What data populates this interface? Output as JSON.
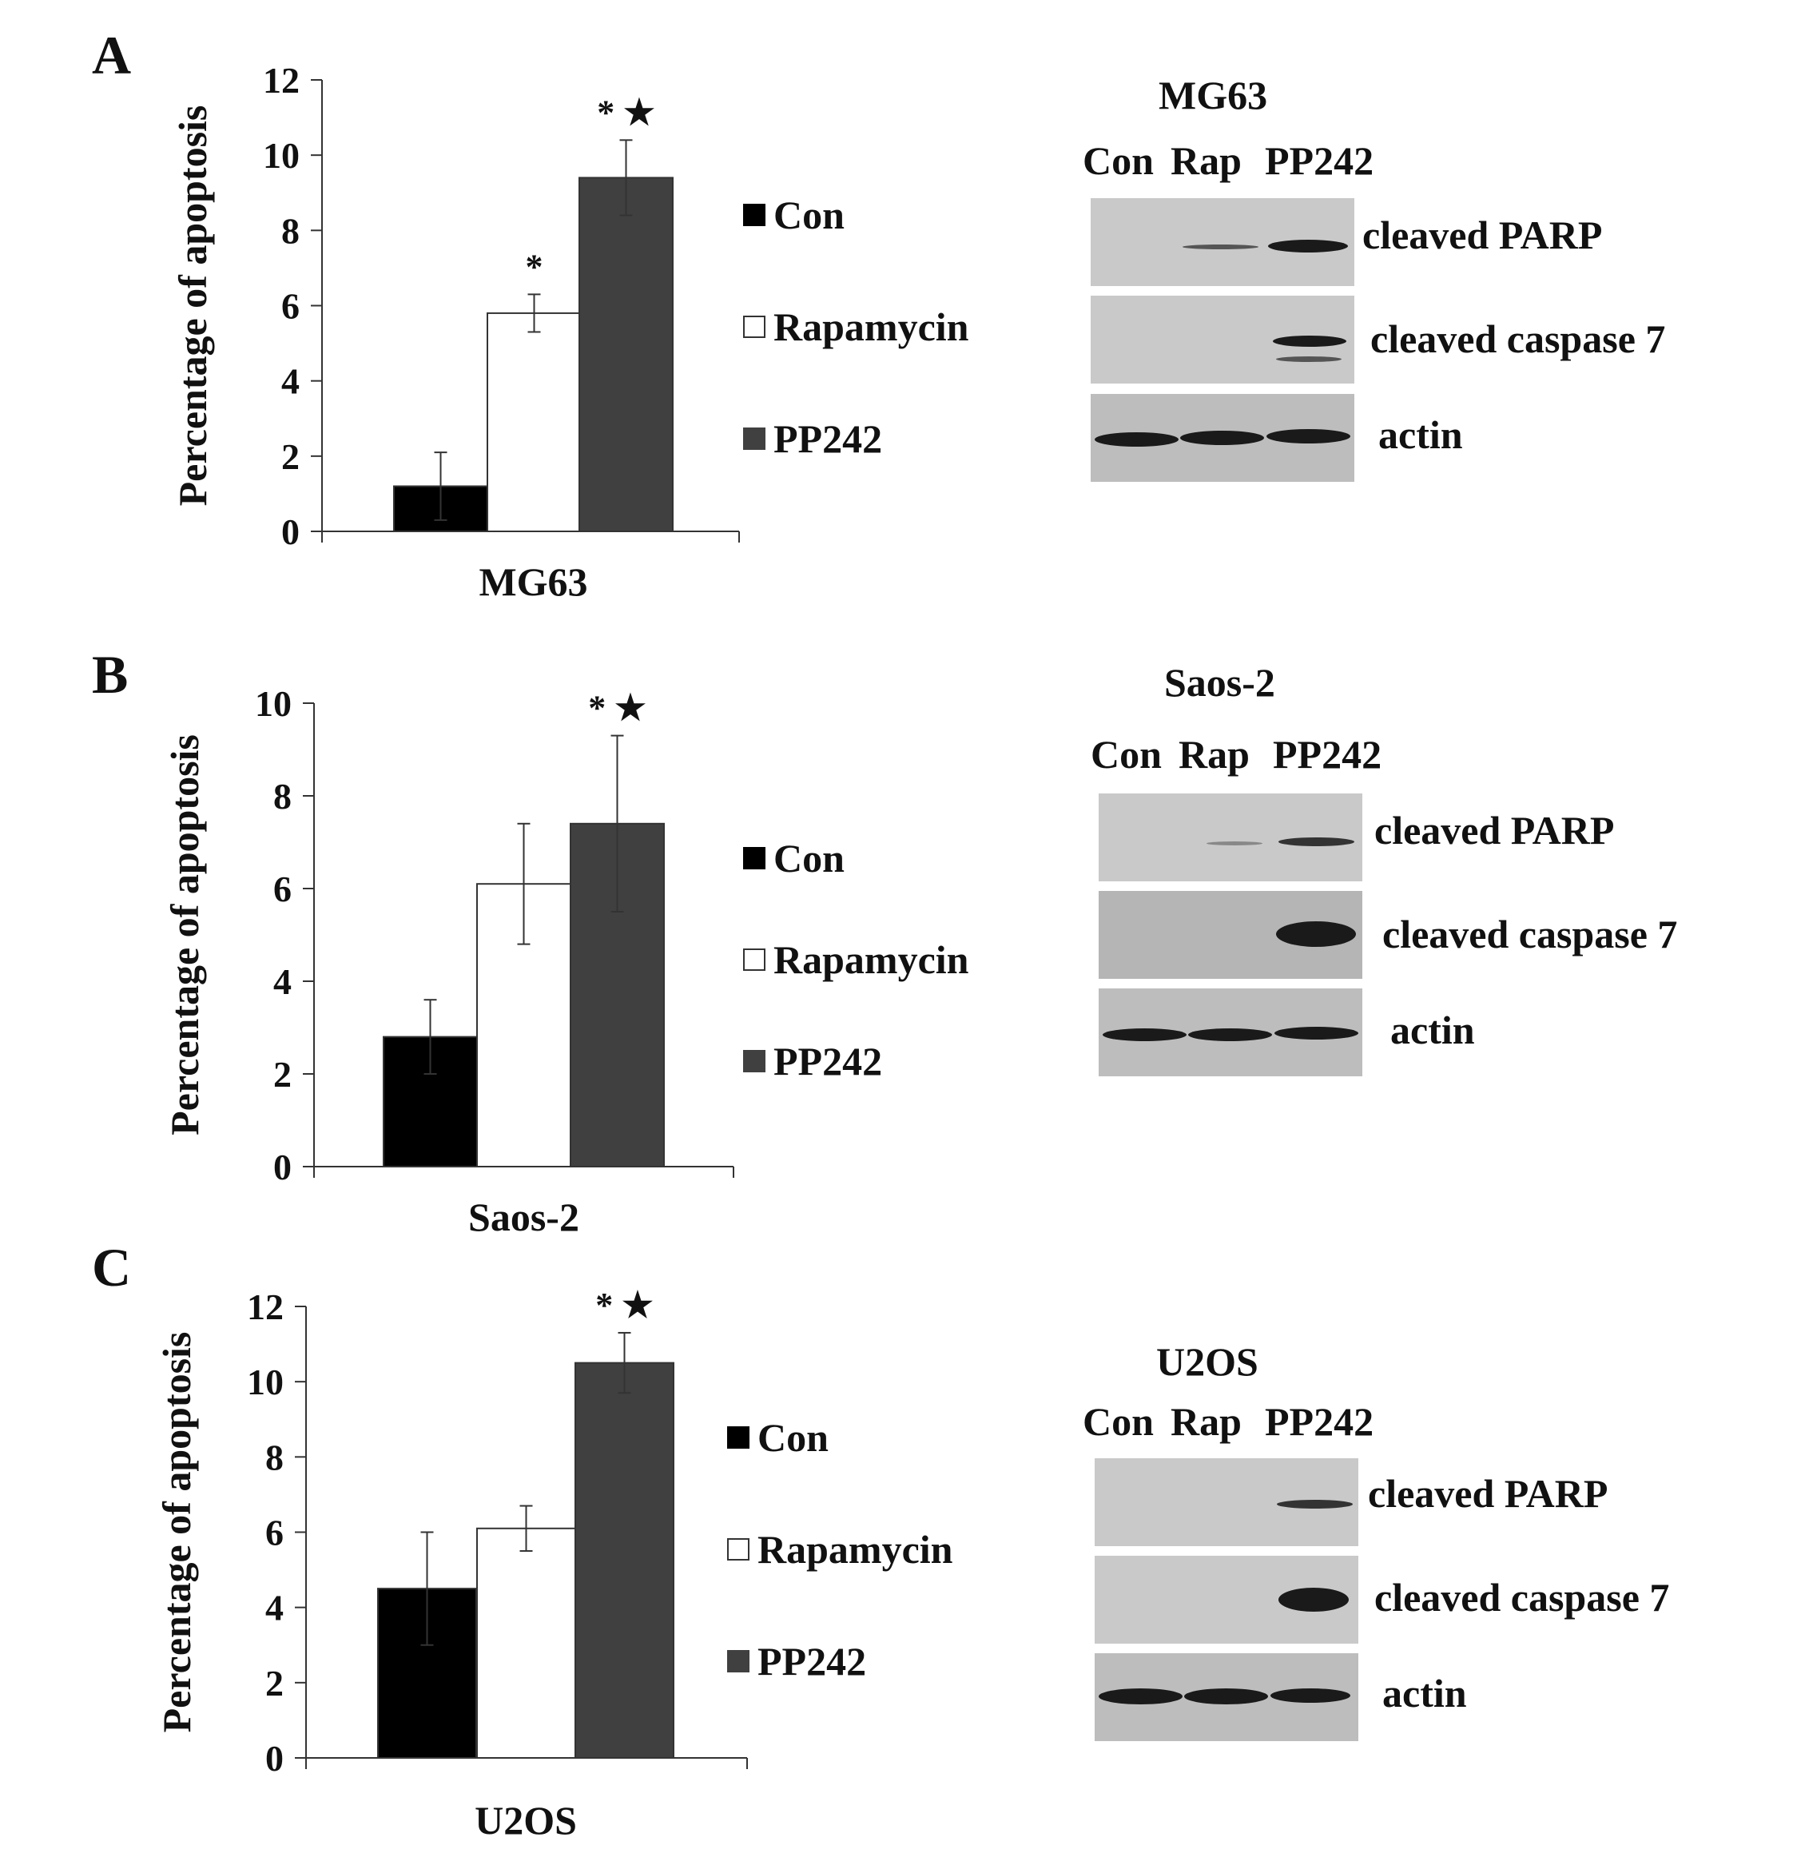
{
  "colors": {
    "con": "#000000",
    "rapamycin": "#ffffff",
    "pp242": "#404040",
    "axis": "#333333"
  },
  "legend": [
    {
      "label": "Con",
      "color": "#000000"
    },
    {
      "label": "Rapamycin",
      "color": "#ffffff"
    },
    {
      "label": "PP242",
      "color": "#404040"
    }
  ],
  "blot_lanes": [
    "Con",
    "Rap",
    "PP242"
  ],
  "blot_rows": [
    "cleaved PARP",
    "cleaved caspase 7",
    "actin"
  ],
  "panels": [
    {
      "letter": "A",
      "blot_title": "MG63"
    },
    {
      "letter": "B",
      "blot_title": "Saos-2"
    },
    {
      "letter": "C",
      "blot_title": "U2OS"
    }
  ],
  "chart_data": [
    {
      "type": "bar",
      "xlabel": "MG63",
      "ylabel": "Percentage of apoptosis",
      "ylim": [
        0,
        12
      ],
      "yticks": [
        0,
        2,
        4,
        6,
        8,
        10,
        12
      ],
      "categories": [
        "MG63"
      ],
      "series": [
        {
          "name": "Con",
          "values": [
            1.2
          ],
          "error": [
            0.9
          ],
          "annotation": ""
        },
        {
          "name": "Rapamycin",
          "values": [
            5.8
          ],
          "error": [
            0.5
          ],
          "annotation": "*"
        },
        {
          "name": "PP242",
          "values": [
            9.4
          ],
          "error": [
            1.0
          ],
          "annotation": "* ★"
        }
      ],
      "grid": false,
      "legend_position": "right"
    },
    {
      "type": "bar",
      "xlabel": "Saos-2",
      "ylabel": "Percentage of apoptosis",
      "ylim": [
        0,
        10
      ],
      "yticks": [
        0,
        2,
        4,
        6,
        8,
        10
      ],
      "categories": [
        "Saos-2"
      ],
      "series": [
        {
          "name": "Con",
          "values": [
            2.8
          ],
          "error": [
            0.8
          ],
          "annotation": ""
        },
        {
          "name": "Rapamycin",
          "values": [
            6.1
          ],
          "error": [
            1.3
          ],
          "annotation": ""
        },
        {
          "name": "PP242",
          "values": [
            7.4
          ],
          "error": [
            1.9
          ],
          "annotation": "* ★"
        }
      ],
      "grid": false,
      "legend_position": "right"
    },
    {
      "type": "bar",
      "xlabel": "U2OS",
      "ylabel": "Percentage of apoptosis",
      "ylim": [
        0,
        12
      ],
      "yticks": [
        0,
        2,
        4,
        6,
        8,
        10,
        12
      ],
      "categories": [
        "U2OS"
      ],
      "series": [
        {
          "name": "Con",
          "values": [
            4.5
          ],
          "error": [
            1.5
          ],
          "annotation": ""
        },
        {
          "name": "Rapamycin",
          "values": [
            6.1
          ],
          "error": [
            0.6
          ],
          "annotation": ""
        },
        {
          "name": "PP242",
          "values": [
            10.5
          ],
          "error": [
            0.8
          ],
          "annotation": "* ★"
        }
      ],
      "grid": false,
      "legend_position": "right"
    }
  ]
}
